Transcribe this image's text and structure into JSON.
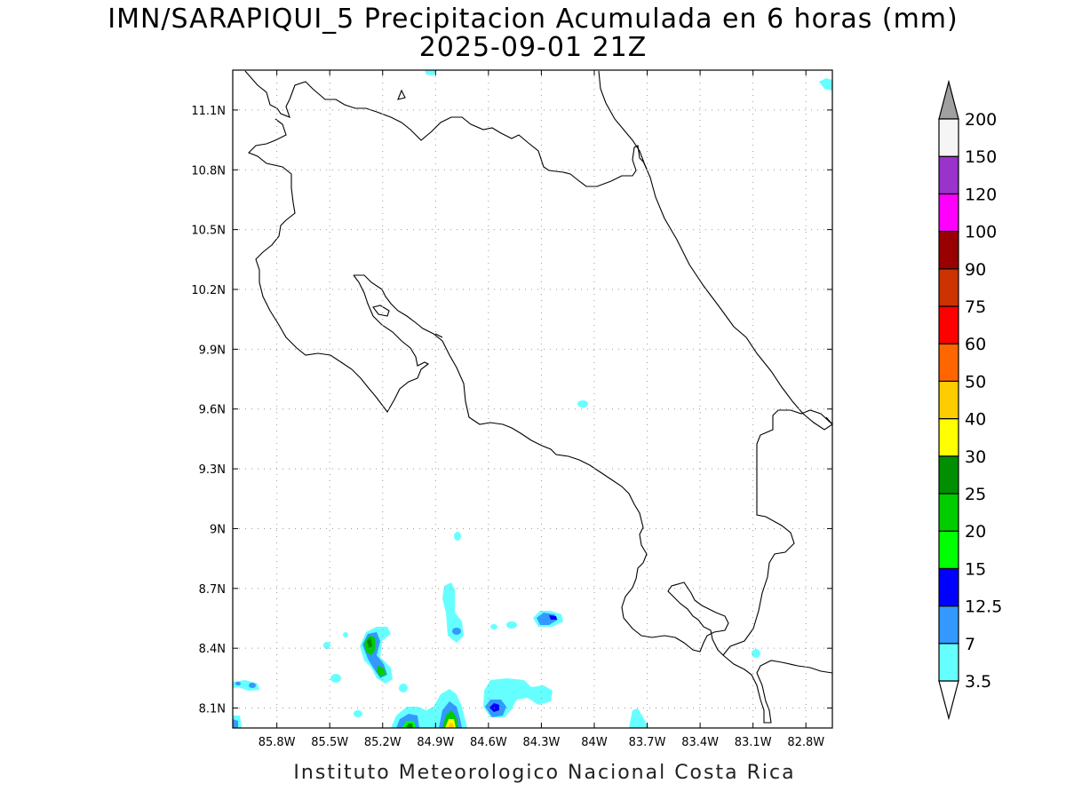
{
  "title_line1": "IMN/SARAPIQUI_5 Precipitacion Acumulada en 6 horas (mm)",
  "title_line2": "2025-09-01 21Z",
  "footer": "Instituto Meteorologico Nacional Costa Rica",
  "map": {
    "lon_range": [
      -86.05,
      -82.65
    ],
    "lat_range": [
      8.0,
      11.3
    ],
    "lat_ticks": [
      {
        "value": 11.1,
        "label": "11.1N"
      },
      {
        "value": 10.8,
        "label": "10.8N"
      },
      {
        "value": 10.5,
        "label": "10.5N"
      },
      {
        "value": 10.2,
        "label": "10.2N"
      },
      {
        "value": 9.9,
        "label": "9.9N"
      },
      {
        "value": 9.6,
        "label": "9.6N"
      },
      {
        "value": 9.3,
        "label": "9.3N"
      },
      {
        "value": 9.0,
        "label": "9N"
      },
      {
        "value": 8.7,
        "label": "8.7N"
      },
      {
        "value": 8.4,
        "label": "8.4N"
      },
      {
        "value": 8.1,
        "label": "8.1N"
      }
    ],
    "lon_ticks": [
      {
        "value": -85.8,
        "label": "85.8W"
      },
      {
        "value": -85.5,
        "label": "85.5W"
      },
      {
        "value": -85.2,
        "label": "85.2W"
      },
      {
        "value": -84.9,
        "label": "84.9W"
      },
      {
        "value": -84.6,
        "label": "84.6W"
      },
      {
        "value": -84.3,
        "label": "84.3W"
      },
      {
        "value": -84.0,
        "label": "84W"
      },
      {
        "value": -83.7,
        "label": "83.7W"
      },
      {
        "value": -83.4,
        "label": "83.4W"
      },
      {
        "value": -83.1,
        "label": "83.1W"
      },
      {
        "value": -82.8,
        "label": "82.8W"
      }
    ],
    "grid": "dotted"
  },
  "colorbar": {
    "labels": [
      "3.5",
      "7",
      "12.5",
      "15",
      "20",
      "25",
      "30",
      "40",
      "50",
      "60",
      "75",
      "90",
      "100",
      "120",
      "150",
      "200"
    ],
    "colors": [
      "#66ffff",
      "#3399ff",
      "#0000ff",
      "#00ff00",
      "#00cc00",
      "#008f00",
      "#ffff00",
      "#ffcc00",
      "#ff6600",
      "#ff0000",
      "#cc3300",
      "#990000",
      "#ff00ff",
      "#9933cc",
      "#f5f5f5"
    ],
    "top_arrow_color": "#a0a0a0",
    "bottom_arrow_color": "#ffffff"
  },
  "precip_features": [
    {
      "lon": -84.98,
      "lat": 8.06,
      "level": 3
    },
    {
      "lon": -84.76,
      "lat": 8.08,
      "level": 6
    },
    {
      "lon": -84.45,
      "lat": 8.11,
      "level": 2
    },
    {
      "lon": -85.15,
      "lat": 8.41,
      "level": 4
    },
    {
      "lon": -85.12,
      "lat": 8.3,
      "level": 4
    },
    {
      "lon": -84.16,
      "lat": 8.56,
      "level": 2
    },
    {
      "lon": -84.72,
      "lat": 8.48,
      "level": 1
    },
    {
      "lon": -85.99,
      "lat": 8.05,
      "level": 3
    }
  ]
}
